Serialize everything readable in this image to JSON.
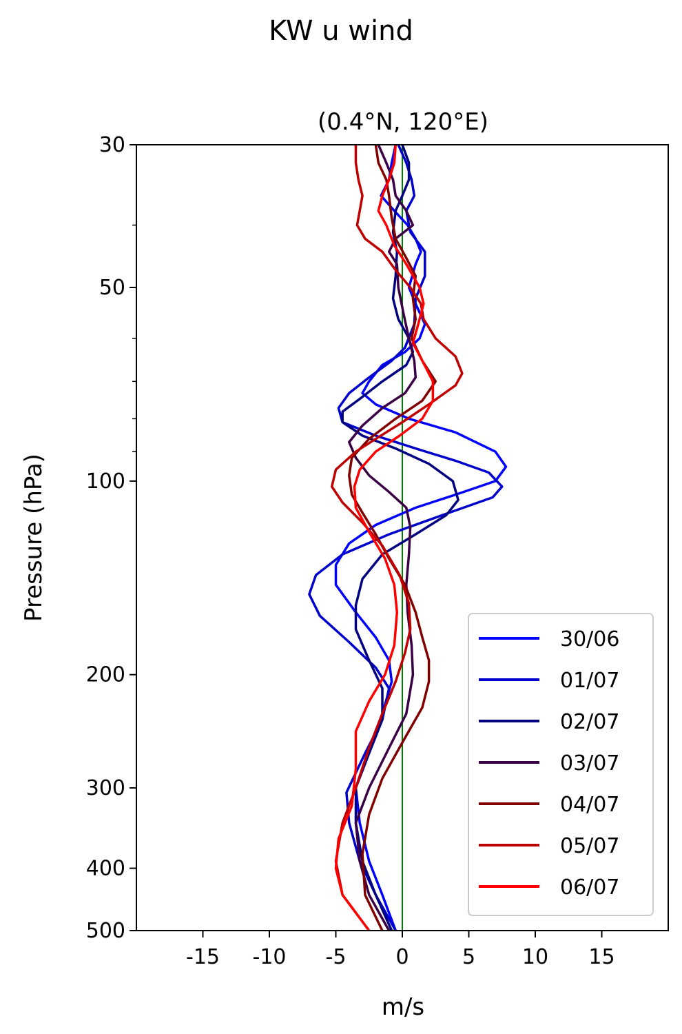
{
  "figure": {
    "title": "KW u wind"
  },
  "chart_data": {
    "type": "line",
    "title": "(0.4°N, 120°E)",
    "xlabel": "m/s",
    "ylabel": "Pressure (hPa)",
    "xlim": [
      -20,
      20
    ],
    "ylim": [
      500,
      30
    ],
    "yscale": "log",
    "xticks": [
      -15,
      -10,
      -5,
      0,
      5,
      10,
      15
    ],
    "xtick_labels": [
      "-15",
      "-10",
      "-5",
      "0",
      "5",
      "10",
      "15"
    ],
    "yticks": [
      30,
      50,
      100,
      200,
      300,
      400,
      500
    ],
    "ytick_labels": [
      "30",
      "50",
      "100",
      "200",
      "300",
      "400",
      "500"
    ],
    "y_minor_ticks": [
      40,
      60,
      70,
      80,
      90
    ],
    "legend_position": "lower right",
    "reference_line": {
      "x": 0,
      "color": "#008000"
    },
    "series": [
      {
        "name": "30/06",
        "color": "#0000ff",
        "points": [
          [
            -0.5,
            30
          ],
          [
            -0.8,
            32
          ],
          [
            -1.0,
            34
          ],
          [
            -1.6,
            36
          ],
          [
            -0.6,
            38
          ],
          [
            0.4,
            40
          ],
          [
            1.0,
            42
          ],
          [
            1.4,
            44
          ],
          [
            1.0,
            46
          ],
          [
            0.5,
            50
          ],
          [
            1.0,
            53
          ],
          [
            1.7,
            57
          ],
          [
            1.3,
            60
          ],
          [
            0.2,
            63
          ],
          [
            -1.5,
            66
          ],
          [
            -2.5,
            70
          ],
          [
            -3.0,
            73
          ],
          [
            -2.0,
            76
          ],
          [
            0.5,
            80
          ],
          [
            4.0,
            84
          ],
          [
            7.0,
            90
          ],
          [
            7.8,
            95
          ],
          [
            7.0,
            100
          ],
          [
            4.0,
            105
          ],
          [
            1.0,
            110
          ],
          [
            -2.0,
            117
          ],
          [
            -4.0,
            125
          ],
          [
            -5.0,
            135
          ],
          [
            -5.0,
            145
          ],
          [
            -3.5,
            160
          ],
          [
            -2.0,
            175
          ],
          [
            -1.0,
            190
          ],
          [
            -0.8,
            205
          ],
          [
            -1.5,
            230
          ],
          [
            -2.5,
            260
          ],
          [
            -3.5,
            300
          ],
          [
            -3.2,
            340
          ],
          [
            -2.5,
            390
          ],
          [
            -1.5,
            440
          ],
          [
            -0.5,
            500
          ]
        ]
      },
      {
        "name": "01/07",
        "color": "#0000cc",
        "points": [
          [
            -0.3,
            30
          ],
          [
            0.3,
            32
          ],
          [
            0.7,
            34
          ],
          [
            0.9,
            36
          ],
          [
            0.3,
            38
          ],
          [
            0.6,
            41
          ],
          [
            1.7,
            44
          ],
          [
            1.7,
            48
          ],
          [
            1.0,
            52
          ],
          [
            0.9,
            57
          ],
          [
            0.2,
            62
          ],
          [
            -0.8,
            65
          ],
          [
            -2.5,
            69
          ],
          [
            -4.0,
            73
          ],
          [
            -4.8,
            77
          ],
          [
            -4.5,
            81
          ],
          [
            -2.0,
            85
          ],
          [
            1.0,
            89
          ],
          [
            4.0,
            93
          ],
          [
            6.5,
            97
          ],
          [
            7.5,
            102
          ],
          [
            6.8,
            106
          ],
          [
            3.0,
            113
          ],
          [
            -1.0,
            121
          ],
          [
            -4.5,
            130
          ],
          [
            -6.5,
            140
          ],
          [
            -7.0,
            150
          ],
          [
            -6.2,
            162
          ],
          [
            -4.0,
            178
          ],
          [
            -2.0,
            195
          ],
          [
            -1.0,
            210
          ],
          [
            -1.5,
            235
          ],
          [
            -2.8,
            265
          ],
          [
            -4.2,
            305
          ],
          [
            -4.0,
            340
          ],
          [
            -3.2,
            390
          ],
          [
            -2.0,
            440
          ],
          [
            -0.5,
            500
          ]
        ]
      },
      {
        "name": "02/07",
        "color": "#000080",
        "points": [
          [
            0.0,
            30
          ],
          [
            0.5,
            32
          ],
          [
            0.5,
            34
          ],
          [
            0.0,
            36
          ],
          [
            -0.5,
            38
          ],
          [
            -0.7,
            41
          ],
          [
            -0.4,
            44
          ],
          [
            -0.5,
            48
          ],
          [
            -0.7,
            52
          ],
          [
            -0.3,
            56
          ],
          [
            0.5,
            60
          ],
          [
            0.8,
            63
          ],
          [
            0.3,
            66
          ],
          [
            -1.5,
            70
          ],
          [
            -3.0,
            74
          ],
          [
            -4.5,
            78
          ],
          [
            -4.5,
            81
          ],
          [
            -3.0,
            85
          ],
          [
            -0.5,
            89
          ],
          [
            2.0,
            94
          ],
          [
            3.8,
            100
          ],
          [
            4.2,
            107
          ],
          [
            3.3,
            113
          ],
          [
            1.0,
            121
          ],
          [
            -1.5,
            130
          ],
          [
            -3.0,
            142
          ],
          [
            -3.5,
            156
          ],
          [
            -3.5,
            170
          ],
          [
            -2.5,
            190
          ],
          [
            -1.5,
            210
          ],
          [
            -1.5,
            235
          ],
          [
            -2.5,
            265
          ],
          [
            -3.5,
            300
          ],
          [
            -3.5,
            340
          ],
          [
            -3.0,
            390
          ],
          [
            -2.0,
            440
          ],
          [
            -0.8,
            500
          ]
        ]
      },
      {
        "name": "03/07",
        "color": "#3a0045",
        "points": [
          [
            -1.8,
            30
          ],
          [
            -1.2,
            32
          ],
          [
            -0.7,
            34
          ],
          [
            -0.5,
            36
          ],
          [
            0.3,
            38
          ],
          [
            0.8,
            40
          ],
          [
            -0.5,
            42
          ],
          [
            -1.0,
            44
          ],
          [
            -0.4,
            46
          ],
          [
            -0.3,
            50
          ],
          [
            0.1,
            55
          ],
          [
            0.5,
            60
          ],
          [
            0.9,
            65
          ],
          [
            1.0,
            69
          ],
          [
            0.2,
            73
          ],
          [
            -1.5,
            77
          ],
          [
            -3.0,
            82
          ],
          [
            -4.0,
            87
          ],
          [
            -3.5,
            92
          ],
          [
            -2.5,
            98
          ],
          [
            -1.0,
            104
          ],
          [
            0.3,
            110
          ],
          [
            0.6,
            118
          ],
          [
            0.5,
            130
          ],
          [
            0.3,
            145
          ],
          [
            0.4,
            160
          ],
          [
            0.7,
            180
          ],
          [
            0.8,
            200
          ],
          [
            0.3,
            230
          ],
          [
            -1.0,
            260
          ],
          [
            -2.5,
            300
          ],
          [
            -3.5,
            340
          ],
          [
            -3.2,
            390
          ],
          [
            -2.5,
            440
          ],
          [
            -1.0,
            500
          ]
        ]
      },
      {
        "name": "04/07",
        "color": "#800000",
        "points": [
          [
            -2.0,
            30
          ],
          [
            -1.8,
            32
          ],
          [
            -1.2,
            34
          ],
          [
            -1.0,
            36
          ],
          [
            -0.8,
            39
          ],
          [
            -0.5,
            42
          ],
          [
            0.3,
            45
          ],
          [
            1.0,
            48
          ],
          [
            0.8,
            52
          ],
          [
            1.0,
            56
          ],
          [
            0.7,
            60
          ],
          [
            1.5,
            65
          ],
          [
            2.5,
            70
          ],
          [
            1.5,
            75
          ],
          [
            -0.5,
            80
          ],
          [
            -2.5,
            86
          ],
          [
            -3.8,
            92
          ],
          [
            -4.0,
            98
          ],
          [
            -3.8,
            105
          ],
          [
            -3.0,
            112
          ],
          [
            -2.0,
            121
          ],
          [
            -1.0,
            132
          ],
          [
            0.2,
            145
          ],
          [
            1.0,
            160
          ],
          [
            1.5,
            175
          ],
          [
            2.0,
            190
          ],
          [
            2.0,
            205
          ],
          [
            1.5,
            225
          ],
          [
            0.0,
            255
          ],
          [
            -1.5,
            290
          ],
          [
            -2.5,
            330
          ],
          [
            -3.0,
            380
          ],
          [
            -2.8,
            440
          ],
          [
            -1.5,
            500
          ]
        ]
      },
      {
        "name": "05/07",
        "color": "#c00000",
        "points": [
          [
            -3.5,
            30
          ],
          [
            -3.5,
            32
          ],
          [
            -3.3,
            34
          ],
          [
            -3.0,
            36
          ],
          [
            -3.2,
            38
          ],
          [
            -3.4,
            40
          ],
          [
            -2.8,
            42
          ],
          [
            -1.5,
            44
          ],
          [
            -0.5,
            47
          ],
          [
            0.6,
            50
          ],
          [
            1.4,
            53
          ],
          [
            1.6,
            56
          ],
          [
            2.5,
            60
          ],
          [
            4.0,
            64
          ],
          [
            4.5,
            68
          ],
          [
            4.0,
            71
          ],
          [
            2.0,
            76
          ],
          [
            0.0,
            81
          ],
          [
            -2.0,
            86
          ],
          [
            -3.5,
            90
          ],
          [
            -5.0,
            96
          ],
          [
            -5.3,
            102
          ],
          [
            -4.5,
            108
          ],
          [
            -3.0,
            116
          ],
          [
            -1.5,
            126
          ],
          [
            -0.2,
            140
          ],
          [
            0.5,
            155
          ],
          [
            0.6,
            170
          ],
          [
            0.2,
            185
          ],
          [
            -0.5,
            205
          ],
          [
            -1.5,
            230
          ],
          [
            -2.5,
            260
          ],
          [
            -3.5,
            300
          ],
          [
            -4.5,
            340
          ],
          [
            -5.0,
            390
          ],
          [
            -4.5,
            440
          ],
          [
            -2.5,
            500
          ]
        ]
      },
      {
        "name": "06/07",
        "color": "#ff0000",
        "points": [
          [
            -0.5,
            30
          ],
          [
            -0.6,
            32
          ],
          [
            -1.0,
            34
          ],
          [
            -1.5,
            36
          ],
          [
            -1.8,
            38
          ],
          [
            -1.2,
            40
          ],
          [
            -0.6,
            43
          ],
          [
            0.3,
            46
          ],
          [
            1.3,
            50
          ],
          [
            1.6,
            53
          ],
          [
            1.2,
            57
          ],
          [
            0.8,
            61
          ],
          [
            1.5,
            65
          ],
          [
            2.3,
            70
          ],
          [
            2.3,
            75
          ],
          [
            1.5,
            80
          ],
          [
            -0.2,
            85
          ],
          [
            -2.0,
            90
          ],
          [
            -3.2,
            96
          ],
          [
            -3.6,
            102
          ],
          [
            -3.5,
            110
          ],
          [
            -2.5,
            120
          ],
          [
            -1.3,
            132
          ],
          [
            -0.6,
            145
          ],
          [
            -0.4,
            160
          ],
          [
            -0.6,
            180
          ],
          [
            -1.3,
            200
          ],
          [
            -2.5,
            220
          ],
          [
            -3.5,
            245
          ],
          [
            -3.5,
            280
          ],
          [
            -3.8,
            320
          ],
          [
            -4.8,
            360
          ],
          [
            -5.0,
            400
          ],
          [
            -4.5,
            440
          ],
          [
            -2.5,
            500
          ]
        ]
      }
    ]
  }
}
